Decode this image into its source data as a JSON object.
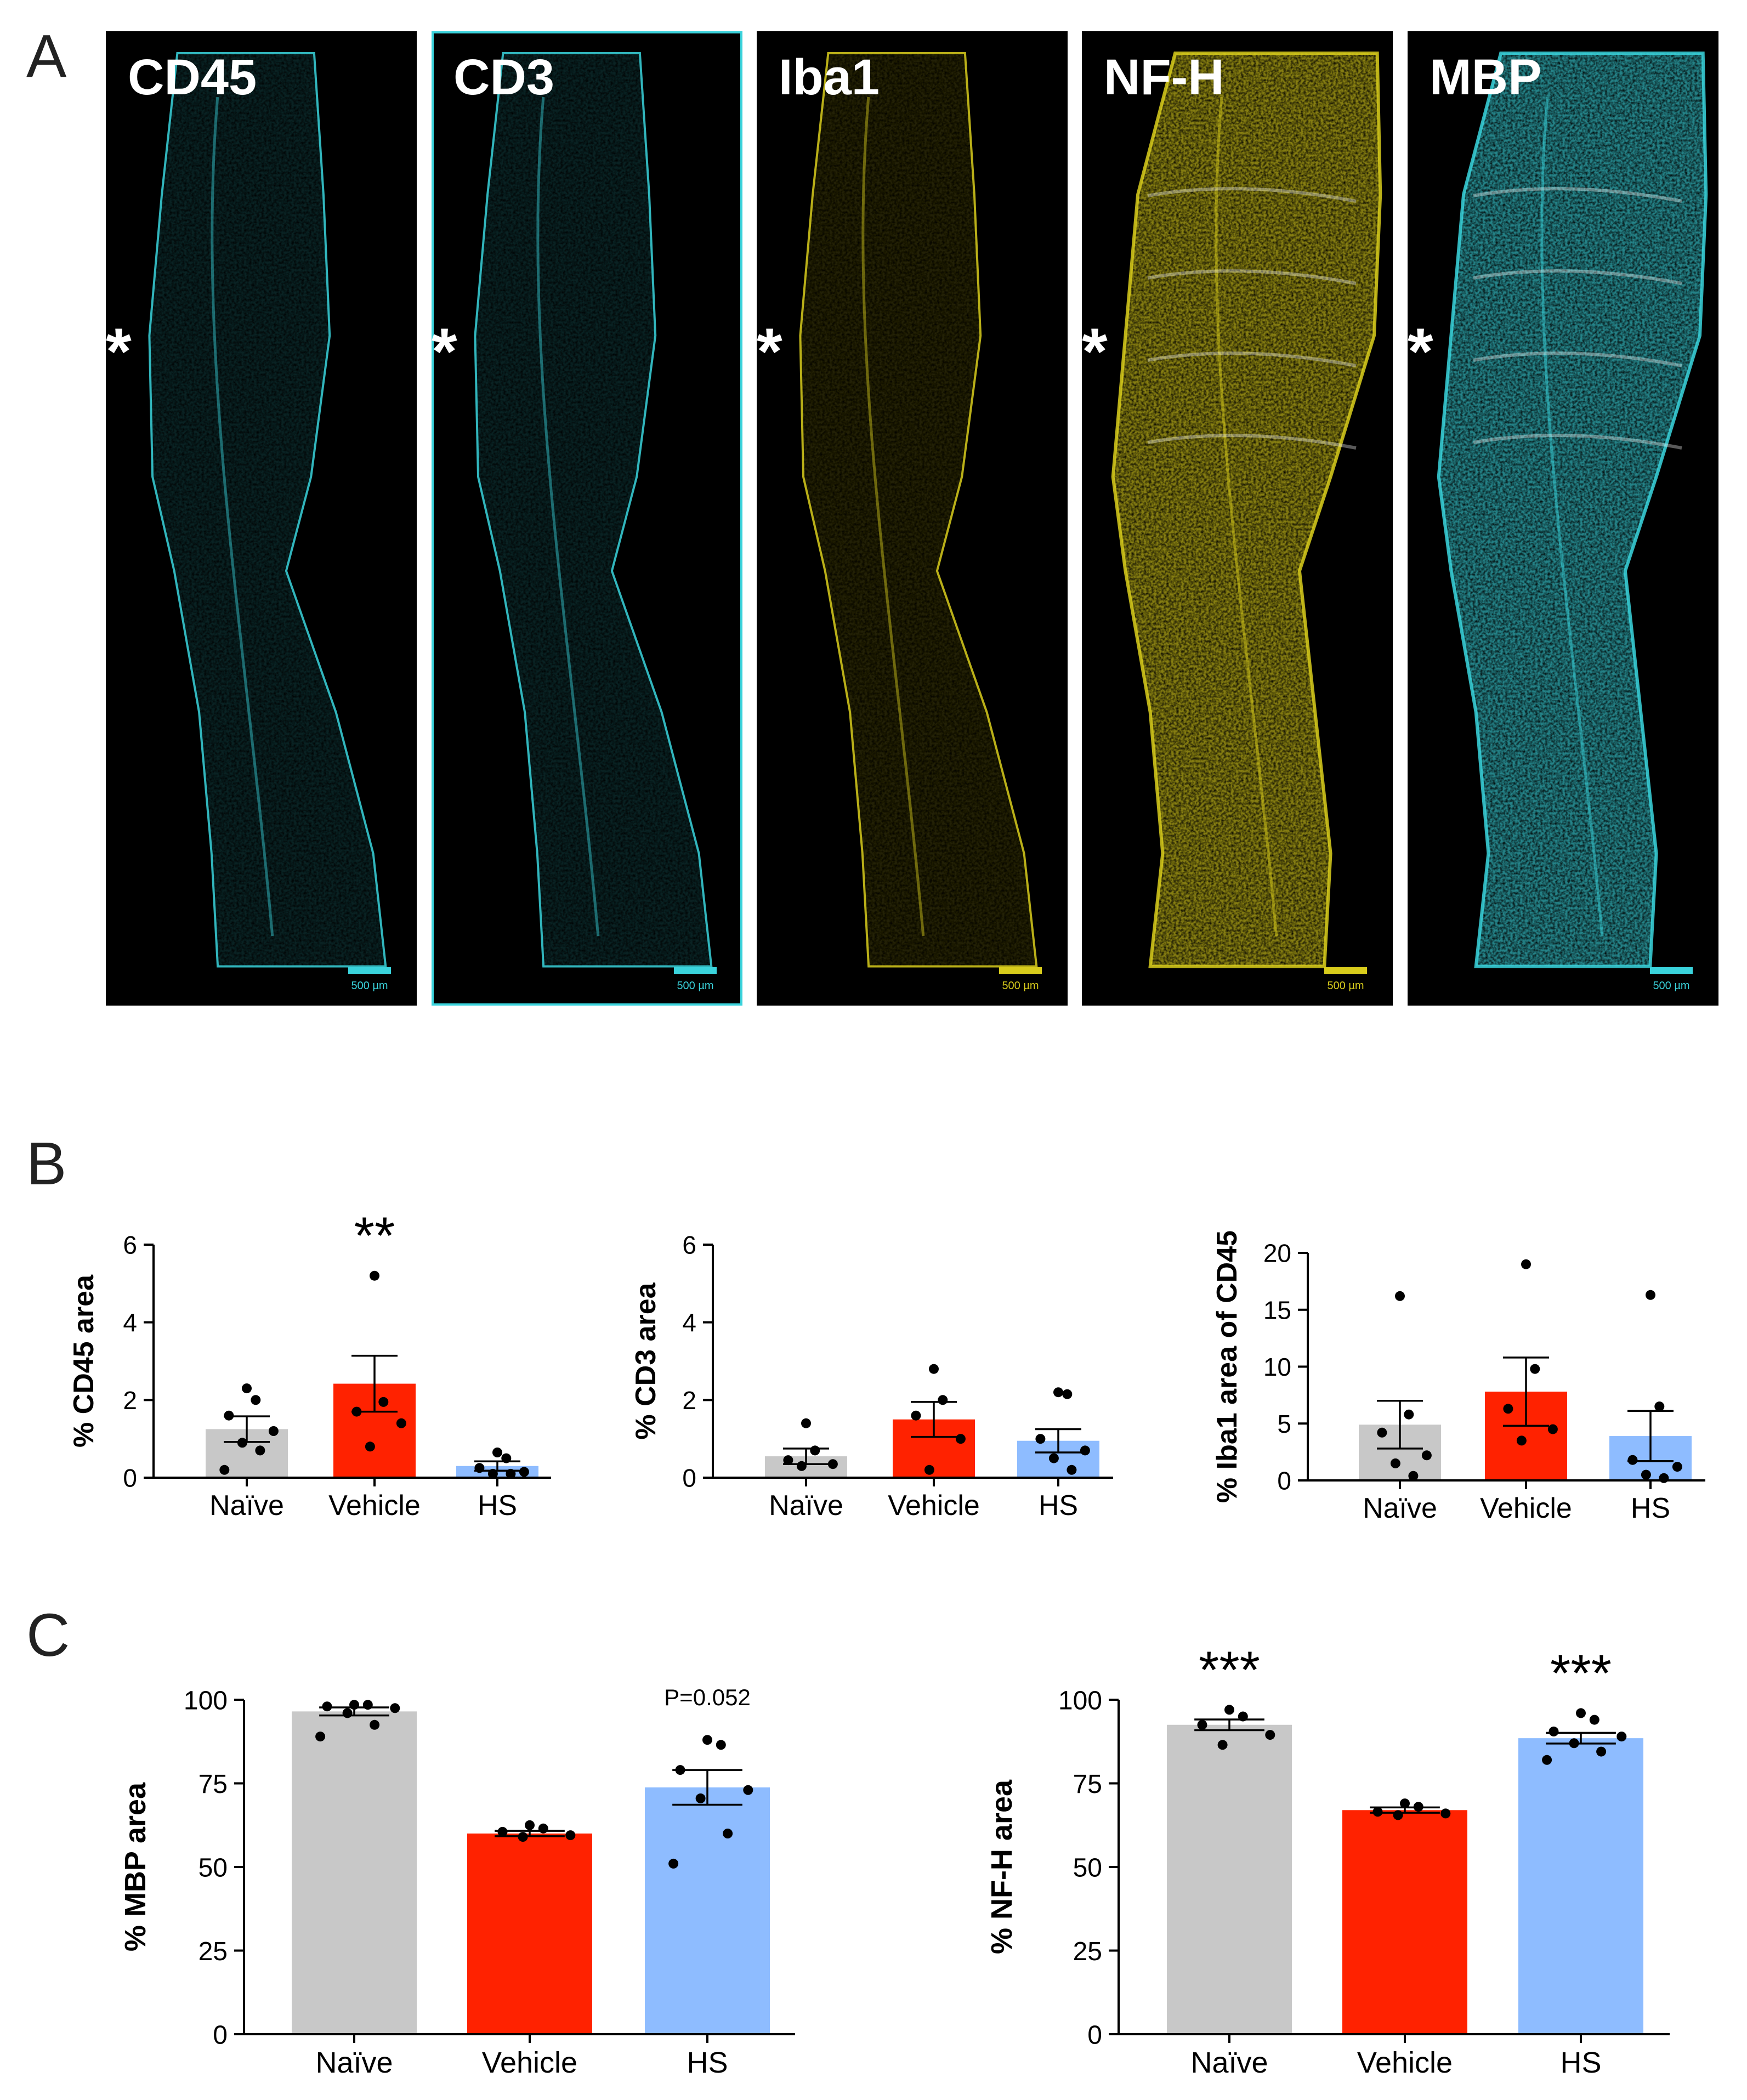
{
  "panel_letters": {
    "a": "A",
    "b": "B",
    "c": "C"
  },
  "micrographs": [
    {
      "label": "CD45",
      "color": "#3ad3dc",
      "asterisk": "*",
      "scale_bar": "500 µm"
    },
    {
      "label": "CD3",
      "color": "#3ad3dc",
      "asterisk": "*",
      "scale_bar": "500 µm"
    },
    {
      "label": "Iba1",
      "color": "#d8cc1c",
      "asterisk": "*",
      "scale_bar": "500 µm"
    },
    {
      "label": "NF-H",
      "color": "#d8cc1c",
      "asterisk": "*",
      "scale_bar": "500 µm"
    },
    {
      "label": "MBP",
      "color": "#3ad3dc",
      "asterisk": "*",
      "scale_bar": "500 µm"
    }
  ],
  "colors": {
    "naive": "#c8c8c8",
    "vehicle": "#ff2200",
    "hs": "#8ebcff",
    "panel_bg": "#000000"
  },
  "chart_data": [
    {
      "id": "cd45",
      "type": "bar",
      "categories": [
        "Naïve",
        "Vehicle",
        "HS"
      ],
      "values": [
        1.25,
        2.42,
        0.3
      ],
      "sem": [
        0.33,
        0.72,
        0.12
      ],
      "points": [
        [
          2.3,
          2.0,
          1.6,
          1.2,
          0.9,
          0.7,
          0.2
        ],
        [
          5.2,
          1.95,
          1.7,
          1.4,
          0.8
        ],
        [
          0.65,
          0.5,
          0.25,
          0.15,
          0.1,
          0.1
        ]
      ],
      "significance": "**",
      "sig_index": 1,
      "ylabel": "% CD45 area",
      "ylim": [
        0,
        6
      ],
      "yticks": [
        0,
        2,
        4,
        6
      ],
      "ytick_labels": [
        "0",
        "2",
        "4",
        "6"
      ],
      "xlabel": "",
      "title": ""
    },
    {
      "id": "cd3",
      "type": "bar",
      "categories": [
        "Naïve",
        "Vehicle",
        "HS"
      ],
      "values": [
        0.55,
        1.5,
        0.95
      ],
      "sem": [
        0.2,
        0.45,
        0.3
      ],
      "points": [
        [
          1.4,
          0.7,
          0.45,
          0.35,
          0.3
        ],
        [
          2.8,
          2.0,
          1.6,
          1.0,
          0.2
        ],
        [
          2.2,
          2.15,
          1.0,
          0.7,
          0.5,
          0.2
        ]
      ],
      "significance": "",
      "sig_index": -1,
      "ylabel": "% CD3 area",
      "ylim": [
        0,
        6
      ],
      "yticks": [
        0,
        2,
        4,
        6
      ],
      "ytick_labels": [
        "0",
        "2",
        "4",
        "6"
      ],
      "xlabel": "",
      "title": ""
    },
    {
      "id": "iba1",
      "type": "bar",
      "categories": [
        "Naïve",
        "Vehicle",
        "HS"
      ],
      "values": [
        4.9,
        7.8,
        3.9
      ],
      "sem": [
        2.1,
        3.0,
        2.2
      ],
      "points": [
        [
          16.2,
          5.8,
          4.2,
          2.2,
          1.5,
          0.4
        ],
        [
          19.0,
          9.8,
          6.3,
          4.5,
          3.5
        ],
        [
          16.3,
          6.5,
          1.8,
          1.2,
          0.5,
          0.2
        ]
      ],
      "significance": "",
      "sig_index": -1,
      "ylabel": "% Iba1 area of CD45",
      "ylim": [
        0,
        20
      ],
      "yticks": [
        0,
        5,
        10,
        15,
        20
      ],
      "ytick_labels": [
        "0",
        "5",
        "10",
        "15",
        "20"
      ],
      "xlabel": "",
      "title": ""
    },
    {
      "id": "mbp",
      "type": "bar",
      "categories": [
        "Naïve",
        "Vehicle",
        "HS"
      ],
      "values": [
        96.5,
        60.0,
        73.8
      ],
      "sem": [
        1.2,
        0.8,
        5.2
      ],
      "points": [
        [
          98.5,
          98.5,
          98.0,
          97.5,
          96.0,
          92.5,
          89.0
        ],
        [
          62.5,
          61.5,
          60.5,
          59.5,
          59.0
        ],
        [
          88.0,
          86.5,
          79.0,
          73.0,
          70.5,
          60.0,
          51.0
        ]
      ],
      "significance": "",
      "sig_index": -1,
      "annotation": "P=0.052",
      "annotation_index": 2,
      "ylabel": "% MBP area",
      "ylim": [
        0,
        100
      ],
      "yticks": [
        0,
        25,
        50,
        75,
        100
      ],
      "ytick_labels": [
        "0",
        "25",
        "50",
        "75",
        "100"
      ],
      "xlabel": "",
      "title": ""
    },
    {
      "id": "nfh",
      "type": "bar",
      "categories": [
        "Naïve",
        "Vehicle",
        "HS"
      ],
      "values": [
        92.5,
        67.0,
        88.5
      ],
      "sem": [
        1.6,
        0.8,
        1.6
      ],
      "points": [
        [
          97.0,
          95.0,
          92.5,
          89.5,
          86.5
        ],
        [
          69.0,
          68.0,
          66.5,
          66.0,
          65.5
        ],
        [
          96.0,
          94.0,
          90.5,
          89.0,
          87.0,
          84.5,
          82.0
        ]
      ],
      "significance": "***",
      "sig_index": 0,
      "significance_2": "***",
      "sig_index_2": 2,
      "ylabel": "% NF-H area",
      "ylim": [
        0,
        100
      ],
      "yticks": [
        0,
        25,
        50,
        75,
        100
      ],
      "ytick_labels": [
        "0",
        "25",
        "50",
        "75",
        "100"
      ],
      "xlabel": "",
      "title": ""
    }
  ]
}
